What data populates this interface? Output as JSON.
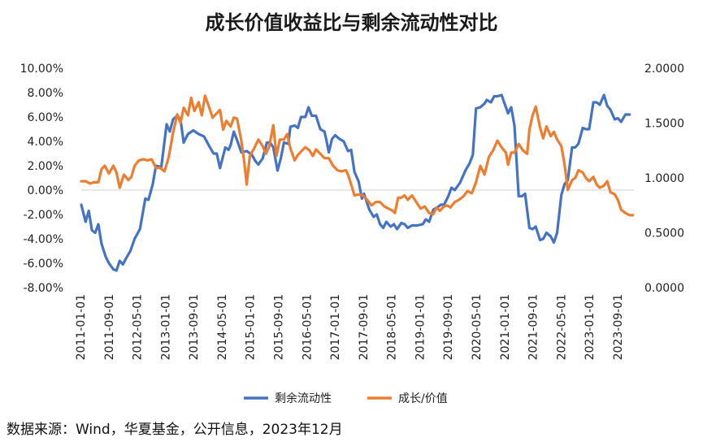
{
  "title": "成长价值收益比与剩余流动性对比",
  "source": "数据来源：Wind，华夏基金，公开信息，2023年12月",
  "chart_data": {
    "type": "line",
    "title": "成长价值收益比与剩余流动性对比",
    "x_labels": [
      "2011-01-01",
      "2011-09-01",
      "2012-05-01",
      "2013-01-01",
      "2013-09-01",
      "2014-05-01",
      "2015-01-01",
      "2015-09-01",
      "2016-05-01",
      "2017-01-01",
      "2017-09-01",
      "2018-05-01",
      "2019-01-01",
      "2019-09-01",
      "2020-05-01",
      "2021-01-01",
      "2021-09-01",
      "2022-05-01",
      "2023-01-01",
      "2023-09-01"
    ],
    "left_axis": {
      "min": -8,
      "max": 10,
      "step": 2,
      "ticks": [
        "-8.00%",
        "-6.00%",
        "-4.00%",
        "-2.00%",
        "0.00%",
        "2.00%",
        "4.00%",
        "6.00%",
        "8.00%",
        "10.00%"
      ]
    },
    "right_axis": {
      "min": 0,
      "max": 2,
      "step": 0.5,
      "ticks": [
        "0.0000",
        "0.5000",
        "1.0000",
        "1.5000",
        "2.0000"
      ]
    },
    "series": [
      {
        "name": "剩余流动性",
        "axis": "left",
        "color": "#4472C4",
        "points": [
          [
            0,
            -1.2
          ],
          [
            0.4,
            -2.6
          ],
          [
            0.7,
            -1.7
          ],
          [
            1,
            -3.3
          ],
          [
            1.3,
            -3.5
          ],
          [
            1.6,
            -2.8
          ],
          [
            1.9,
            -4.4
          ],
          [
            2.3,
            -5.5
          ],
          [
            2.6,
            -6.0
          ],
          [
            3,
            -6.5
          ],
          [
            3.3,
            -6.6
          ],
          [
            3.6,
            -5.8
          ],
          [
            3.9,
            -6.1
          ],
          [
            4.2,
            -5.6
          ],
          [
            4.6,
            -5.0
          ],
          [
            5,
            -4.0
          ],
          [
            5.5,
            -3.2
          ],
          [
            6,
            -0.7
          ],
          [
            6.3,
            -0.8
          ],
          [
            6.7,
            0.5
          ],
          [
            7,
            2.0
          ],
          [
            7.5,
            1.9
          ],
          [
            8,
            5.4
          ],
          [
            8.3,
            4.8
          ],
          [
            8.6,
            5.8
          ],
          [
            9,
            6.1
          ],
          [
            9.3,
            5.8
          ],
          [
            9.6,
            3.9
          ],
          [
            10,
            4.6
          ],
          [
            10.5,
            4.9
          ],
          [
            11,
            4.6
          ],
          [
            11.5,
            4.4
          ],
          [
            12,
            3.6
          ],
          [
            12.4,
            3.0
          ],
          [
            12.7,
            3.0
          ],
          [
            13,
            1.8
          ],
          [
            13.5,
            3.5
          ],
          [
            13.8,
            3.3
          ],
          [
            14,
            3.7
          ],
          [
            14.3,
            4.8
          ],
          [
            14.6,
            4.1
          ],
          [
            15,
            3.1
          ],
          [
            15.5,
            3.2
          ],
          [
            16,
            2.9
          ],
          [
            16.3,
            2.4
          ],
          [
            16.6,
            2.1
          ],
          [
            17,
            2.6
          ],
          [
            17.4,
            3.9
          ],
          [
            17.7,
            3.9
          ],
          [
            18,
            3.5
          ],
          [
            18.4,
            1.6
          ],
          [
            18.7,
            2.6
          ],
          [
            19,
            3.9
          ],
          [
            19.4,
            3.8
          ],
          [
            19.6,
            5.2
          ],
          [
            20,
            5.3
          ],
          [
            20.3,
            5.1
          ],
          [
            20.6,
            6.0
          ],
          [
            21,
            6.0
          ],
          [
            21.3,
            6.8
          ],
          [
            21.6,
            6.1
          ],
          [
            22,
            6.1
          ],
          [
            22.4,
            5.0
          ],
          [
            22.8,
            4.8
          ],
          [
            23,
            4.0
          ],
          [
            23.2,
            3.1
          ],
          [
            23.5,
            4.2
          ],
          [
            23.8,
            4.5
          ],
          [
            24.2,
            4.2
          ],
          [
            24.6,
            4.0
          ],
          [
            25,
            3.2
          ],
          [
            25.3,
            3.3
          ],
          [
            25.6,
            1.5
          ],
          [
            26,
            0.7
          ],
          [
            26.3,
            -0.7
          ],
          [
            26.5,
            -0.3
          ],
          [
            27,
            -1.6
          ],
          [
            27.4,
            -2.2
          ],
          [
            27.7,
            -2.0
          ],
          [
            28,
            -2.8
          ],
          [
            28.3,
            -3.1
          ],
          [
            28.6,
            -2.6
          ],
          [
            29,
            -3.0
          ],
          [
            29.3,
            -2.8
          ],
          [
            29.6,
            -3.2
          ],
          [
            30,
            -2.7
          ],
          [
            30.3,
            -2.8
          ],
          [
            30.6,
            -3.1
          ],
          [
            31,
            -2.9
          ],
          [
            31.5,
            -2.9
          ],
          [
            32,
            -2.8
          ],
          [
            32.3,
            -2.4
          ],
          [
            32.6,
            -2.6
          ],
          [
            33,
            -1.6
          ],
          [
            33.4,
            -1.4
          ],
          [
            33.7,
            -1.2
          ],
          [
            34,
            -1.2
          ],
          [
            34.4,
            -0.5
          ],
          [
            34.7,
            0.2
          ],
          [
            35,
            0.0
          ],
          [
            35.5,
            0.6
          ],
          [
            36,
            1.6
          ],
          [
            36.4,
            2.2
          ],
          [
            36.7,
            2.9
          ],
          [
            37,
            6.7
          ],
          [
            37.4,
            6.8
          ],
          [
            37.8,
            7.1
          ],
          [
            38,
            7.4
          ],
          [
            38.4,
            7.2
          ],
          [
            38.7,
            7.7
          ],
          [
            39,
            7.7
          ],
          [
            39.4,
            7.8
          ],
          [
            39.8,
            6.8
          ],
          [
            40,
            6.3
          ],
          [
            40.3,
            6.8
          ],
          [
            40.6,
            5.3
          ],
          [
            41,
            -0.5
          ],
          [
            41.3,
            -0.5
          ],
          [
            41.6,
            -0.3
          ],
          [
            42,
            -3.1
          ],
          [
            42.3,
            -3.2
          ],
          [
            42.6,
            -3.0
          ],
          [
            43,
            -4.1
          ],
          [
            43.3,
            -4.0
          ],
          [
            43.6,
            -3.5
          ],
          [
            44,
            -3.8
          ],
          [
            44.3,
            -4.3
          ],
          [
            44.6,
            -3.5
          ],
          [
            45,
            -0.4
          ],
          [
            45.3,
            0.5
          ],
          [
            45.6,
            0.8
          ],
          [
            46,
            3.5
          ],
          [
            46.3,
            3.5
          ],
          [
            46.6,
            3.8
          ],
          [
            47,
            5.1
          ],
          [
            47.3,
            5.0
          ],
          [
            47.6,
            5.0
          ],
          [
            48,
            7.2
          ],
          [
            48.3,
            7.2
          ],
          [
            48.6,
            7.0
          ],
          [
            49,
            7.8
          ],
          [
            49.3,
            6.9
          ],
          [
            49.6,
            6.6
          ],
          [
            50,
            5.8
          ],
          [
            50.3,
            5.9
          ],
          [
            50.6,
            5.6
          ],
          [
            51,
            6.2
          ],
          [
            51.4,
            6.2
          ]
        ]
      },
      {
        "name": "成长/价值",
        "axis": "right",
        "color": "#ED7D31",
        "points": [
          [
            0,
            0.97
          ],
          [
            0.4,
            0.97
          ],
          [
            0.8,
            0.95
          ],
          [
            1.2,
            0.96
          ],
          [
            1.6,
            0.96
          ],
          [
            1.9,
            1.08
          ],
          [
            2.2,
            1.11
          ],
          [
            2.6,
            1.04
          ],
          [
            3,
            1.11
          ],
          [
            3.3,
            1.05
          ],
          [
            3.6,
            0.91
          ],
          [
            4,
            1.03
          ],
          [
            4.4,
            0.98
          ],
          [
            4.7,
            1.01
          ],
          [
            5,
            1.11
          ],
          [
            5.4,
            1.16
          ],
          [
            5.8,
            1.17
          ],
          [
            6.2,
            1.16
          ],
          [
            6.6,
            1.17
          ],
          [
            7,
            1.09
          ],
          [
            7.4,
            1.09
          ],
          [
            7.8,
            1.06
          ],
          [
            8.2,
            1.19
          ],
          [
            8.6,
            1.41
          ],
          [
            9,
            1.58
          ],
          [
            9.3,
            1.5
          ],
          [
            9.6,
            1.64
          ],
          [
            10,
            1.57
          ],
          [
            10.3,
            1.73
          ],
          [
            10.6,
            1.61
          ],
          [
            11,
            1.69
          ],
          [
            11.3,
            1.57
          ],
          [
            11.6,
            1.75
          ],
          [
            12,
            1.64
          ],
          [
            12.3,
            1.55
          ],
          [
            12.6,
            1.58
          ],
          [
            13,
            1.62
          ],
          [
            13.3,
            1.44
          ],
          [
            13.6,
            1.52
          ],
          [
            14,
            1.47
          ],
          [
            14.3,
            1.55
          ],
          [
            14.6,
            1.54
          ],
          [
            15,
            1.34
          ],
          [
            15.3,
            1.13
          ],
          [
            15.5,
            0.94
          ],
          [
            15.8,
            1.2
          ],
          [
            16.2,
            1.27
          ],
          [
            16.6,
            1.35
          ],
          [
            17,
            1.29
          ],
          [
            17.3,
            1.22
          ],
          [
            17.6,
            1.28
          ],
          [
            18,
            1.48
          ],
          [
            18.3,
            1.2
          ],
          [
            18.6,
            1.35
          ],
          [
            19,
            1.35
          ],
          [
            19.3,
            1.4
          ],
          [
            19.6,
            1.27
          ],
          [
            20,
            1.16
          ],
          [
            20.3,
            1.21
          ],
          [
            20.7,
            1.25
          ],
          [
            21,
            1.28
          ],
          [
            21.4,
            1.25
          ],
          [
            21.7,
            1.2
          ],
          [
            22,
            1.26
          ],
          [
            22.4,
            1.22
          ],
          [
            22.8,
            1.18
          ],
          [
            23.2,
            1.18
          ],
          [
            23.6,
            1.11
          ],
          [
            24,
            1.07
          ],
          [
            24.4,
            1.06
          ],
          [
            24.8,
            1.07
          ],
          [
            25,
            1.03
          ],
          [
            25.3,
            0.94
          ],
          [
            25.6,
            0.84
          ],
          [
            26,
            0.85
          ],
          [
            26.4,
            0.84
          ],
          [
            26.8,
            0.8
          ],
          [
            27.2,
            0.75
          ],
          [
            27.6,
            0.78
          ],
          [
            28,
            0.78
          ],
          [
            28.4,
            0.74
          ],
          [
            28.8,
            0.72
          ],
          [
            29.2,
            0.7
          ],
          [
            29.4,
            0.68
          ],
          [
            29.7,
            0.82
          ],
          [
            30,
            0.82
          ],
          [
            30.3,
            0.84
          ],
          [
            30.6,
            0.8
          ],
          [
            31,
            0.84
          ],
          [
            31.4,
            0.78
          ],
          [
            31.8,
            0.72
          ],
          [
            32.2,
            0.74
          ],
          [
            32.6,
            0.68
          ],
          [
            33,
            0.67
          ],
          [
            33.3,
            0.73
          ],
          [
            33.6,
            0.7
          ],
          [
            34,
            0.74
          ],
          [
            34.3,
            0.75
          ],
          [
            34.6,
            0.73
          ],
          [
            35,
            0.78
          ],
          [
            35.4,
            0.8
          ],
          [
            35.8,
            0.83
          ],
          [
            36.2,
            0.88
          ],
          [
            36.6,
            0.86
          ],
          [
            37,
            0.96
          ],
          [
            37.4,
            1.11
          ],
          [
            37.8,
            1.03
          ],
          [
            38.2,
            1.19
          ],
          [
            38.6,
            1.25
          ],
          [
            39,
            1.34
          ],
          [
            39.4,
            1.28
          ],
          [
            39.8,
            1.23
          ],
          [
            40,
            1.12
          ],
          [
            40.3,
            1.23
          ],
          [
            40.6,
            1.23
          ],
          [
            41,
            1.31
          ],
          [
            41.4,
            1.25
          ],
          [
            41.8,
            1.22
          ],
          [
            42,
            1.44
          ],
          [
            42.3,
            1.57
          ],
          [
            42.6,
            1.65
          ],
          [
            43,
            1.46
          ],
          [
            43.3,
            1.36
          ],
          [
            43.6,
            1.47
          ],
          [
            44,
            1.38
          ],
          [
            44.3,
            1.42
          ],
          [
            44.6,
            1.35
          ],
          [
            45,
            1.29
          ],
          [
            45.3,
            1.12
          ],
          [
            45.6,
            0.89
          ],
          [
            46,
            0.98
          ],
          [
            46.3,
            1.0
          ],
          [
            46.6,
            1.07
          ],
          [
            47,
            1.05
          ],
          [
            47.3,
            1.0
          ],
          [
            47.6,
            0.97
          ],
          [
            48,
            1.01
          ],
          [
            48.3,
            0.94
          ],
          [
            48.6,
            0.91
          ],
          [
            49,
            0.93
          ],
          [
            49.3,
            0.97
          ],
          [
            49.6,
            0.87
          ],
          [
            50,
            0.85
          ],
          [
            50.3,
            0.8
          ],
          [
            50.6,
            0.71
          ],
          [
            51,
            0.68
          ],
          [
            51.4,
            0.66
          ],
          [
            51.7,
            0.66
          ]
        ]
      }
    ],
    "legend": [
      "剩余流动性",
      "成长/价值"
    ],
    "legend_position": "bottom",
    "grid": false
  }
}
